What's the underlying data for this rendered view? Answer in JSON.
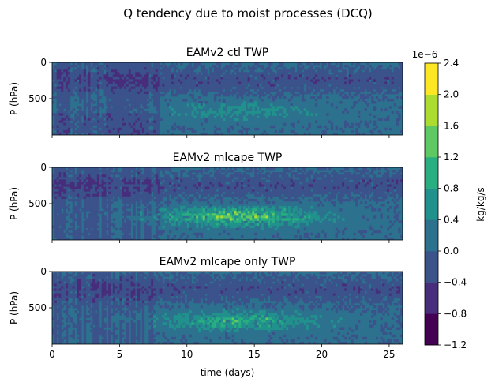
{
  "figure": {
    "suptitle": "Q tendency due to moist processes (DCQ)"
  },
  "chart_data": [
    {
      "type": "heatmap",
      "title": "EAMv2 ctl TWP",
      "xlabel": "",
      "ylabel": "P (hPa)",
      "xlim": [
        0,
        26
      ],
      "ylim": [
        1000,
        0
      ],
      "y_ticks": [
        "0",
        "500"
      ],
      "x_ticks": [],
      "field": "DCQ",
      "description_level": "weak activity; mostly -0.4 to 0.4 with sparse positive bursts near 600-800 hPa after day 15"
    },
    {
      "type": "heatmap",
      "title": "EAMv2 mlcape TWP",
      "xlabel": "",
      "ylabel": "P (hPa)",
      "xlim": [
        0,
        26
      ],
      "ylim": [
        1000,
        0
      ],
      "y_ticks": [
        "0",
        "500"
      ],
      "x_ticks": [],
      "field": "DCQ",
      "description_level": "strong positive tendencies 500-800 hPa from day 8 to 20, peaking near day 14 and 18"
    },
    {
      "type": "heatmap",
      "title": "EAMv2 mlcape only TWP",
      "xlabel": "time (days)",
      "ylabel": "P (hPa)",
      "xlim": [
        0,
        26
      ],
      "ylim": [
        1000,
        0
      ],
      "y_ticks": [
        "0",
        "500"
      ],
      "x_ticks": [
        "0",
        "5",
        "10",
        "15",
        "20",
        "25"
      ],
      "field": "DCQ",
      "description_level": "moderate positive tendencies 600-800 hPa from day 8 to 20"
    }
  ],
  "colorbar": {
    "label": "kg/kg/s",
    "multiplier": "1e−6",
    "levels": [
      -1.2,
      -0.8,
      -0.4,
      0.0,
      0.4,
      0.8,
      1.2,
      1.6,
      2.0,
      2.4
    ],
    "tick_labels": [
      "−1.2",
      "−0.8",
      "−0.4",
      "0.0",
      "0.4",
      "0.8",
      "1.2",
      "1.6",
      "2.0",
      "2.4"
    ],
    "colors": [
      "#440154",
      "#472d7b",
      "#3b528b",
      "#2c728e",
      "#21918c",
      "#28ae80",
      "#5ec962",
      "#addc30",
      "#fde725"
    ]
  }
}
